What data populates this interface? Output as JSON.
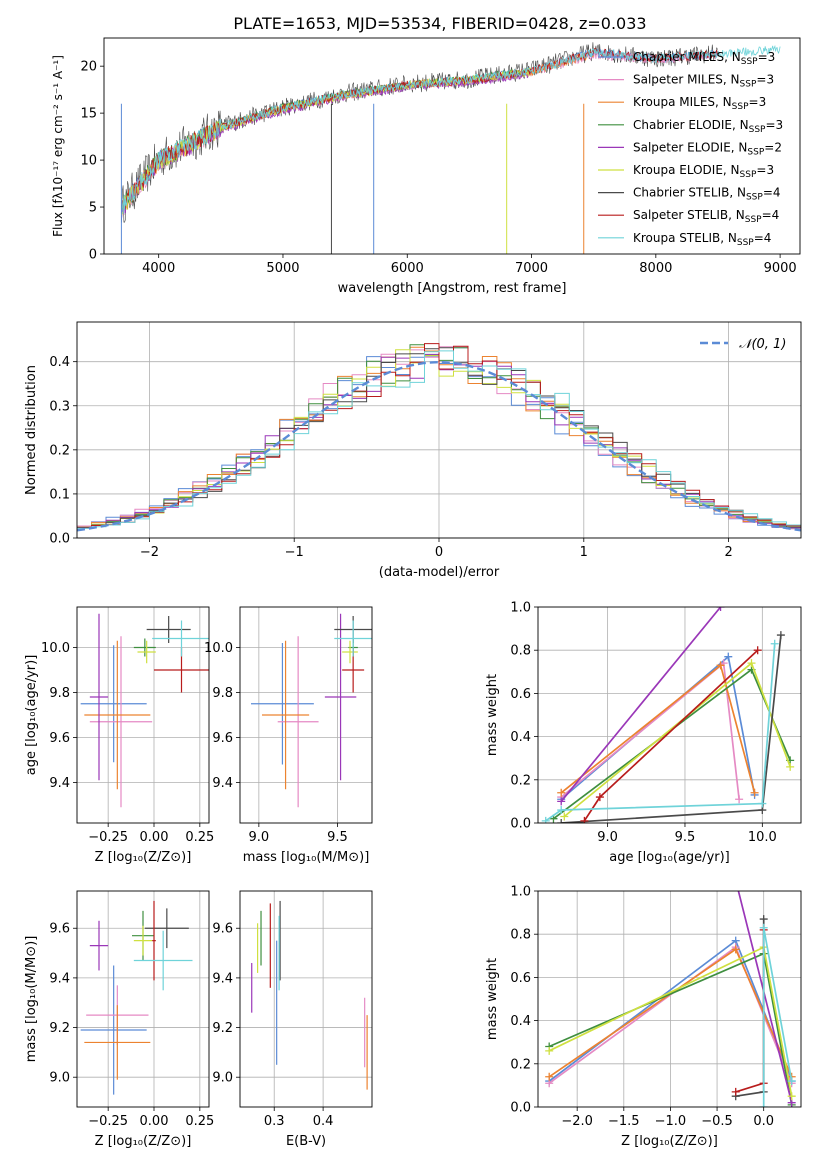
{
  "figure": {
    "title": "PLATE=1653, MJD=53534, FIBERID=0428, z=0.033"
  },
  "chart_data": [
    {
      "type": "line",
      "xlabel": "wavelength [Angstrom, rest frame]",
      "ylabel": "Flux [fλ10⁻¹⁷ erg cm⁻² s⁻¹ A⁻¹]",
      "xlim": [
        3560,
        9160
      ],
      "ylim": [
        0,
        23
      ],
      "xticks": [
        "4000",
        "5000",
        "6000",
        "7000",
        "8000",
        "9000"
      ],
      "yticks": [
        "0",
        "5",
        "10",
        "15",
        "20"
      ],
      "legend": "right",
      "x": [
        3700,
        4000,
        4500,
        5000,
        5500,
        6000,
        6500,
        7000,
        7500,
        8000,
        8500,
        9000
      ],
      "series": [
        {
          "name": "Chabrier MILES, N_SSP=3",
          "color": "#5b8bd6",
          "values": [
            5.0,
            10.0,
            13.5,
            15.5,
            17.0,
            18.0,
            18.5,
            19.5,
            21.5,
            20.8,
            21.3,
            null
          ]
        },
        {
          "name": "Salpeter MILES, N_SSP=3",
          "color": "#e58ac4",
          "values": [
            4.8,
            9.8,
            13.3,
            15.4,
            16.8,
            17.9,
            18.4,
            19.3,
            21.2,
            20.7,
            21.2,
            null
          ]
        },
        {
          "name": "Kroupa MILES, N_SSP=3",
          "color": "#ec8330",
          "values": [
            4.9,
            9.9,
            13.4,
            15.5,
            16.9,
            18.0,
            18.5,
            19.4,
            21.3,
            null,
            null,
            null
          ]
        },
        {
          "name": "Chabrier ELODIE, N_SSP=3",
          "color": "#3f8f3f",
          "values": [
            5.0,
            10.0,
            13.5,
            15.6,
            17.0,
            18.0,
            18.6,
            19.5,
            null,
            null,
            null,
            null
          ]
        },
        {
          "name": "Salpeter ELODIE, N_SSP=2",
          "color": "#9a37b8",
          "values": [
            4.7,
            9.7,
            13.2,
            15.3,
            16.8,
            17.8,
            18.3,
            19.2,
            null,
            null,
            null,
            null
          ]
        },
        {
          "name": "Kroupa ELODIE, N_SSP=3",
          "color": "#cfe040",
          "values": [
            4.9,
            9.9,
            13.4,
            15.5,
            16.9,
            18.0,
            18.5,
            19.4,
            null,
            null,
            null,
            null
          ]
        },
        {
          "name": "Chabrier STELIB, N_SSP=4",
          "color": "#4a4a4a",
          "values": [
            5.1,
            10.1,
            13.6,
            15.6,
            17.1,
            18.1,
            18.6,
            19.6,
            21.6,
            20.8,
            21.4,
            null
          ]
        },
        {
          "name": "Salpeter STELIB, N_SSP=4",
          "color": "#b81c1c",
          "values": [
            5.0,
            10.0,
            13.5,
            15.5,
            17.0,
            18.0,
            18.5,
            19.5,
            21.5,
            20.8,
            21.3,
            null
          ]
        },
        {
          "name": "Kroupa STELIB, N_SSP=4",
          "color": "#6fd3d9",
          "values": [
            5.0,
            10.0,
            13.5,
            15.6,
            17.0,
            18.0,
            18.6,
            19.5,
            21.5,
            20.8,
            21.3,
            21.8
          ]
        }
      ]
    },
    {
      "type": "line",
      "xlabel": "(data-model)/error",
      "ylabel": "Normed distribution",
      "xlim": [
        -2.5,
        2.5
      ],
      "ylim": [
        0,
        0.49
      ],
      "xticks": [
        "−2",
        "−1",
        "0",
        "1",
        "2"
      ],
      "yticks": [
        "0.0",
        "0.1",
        "0.2",
        "0.3",
        "0.4"
      ],
      "legend": "top-right",
      "reference": {
        "name": "𝒩(0, 1)",
        "color": "#5b8bd6",
        "dash": true
      }
    },
    {
      "type": "scatter",
      "xlabel": "Z [log₁₀(Z/Z⊙)]",
      "ylabel": "age  [log₁₀(age/yr)]",
      "xlim": [
        -0.42,
        0.3
      ],
      "ylim": [
        9.22,
        10.18
      ],
      "xticks": [
        "−0.25",
        "0.00",
        "0.25"
      ],
      "yticks": [
        "9.4",
        "9.6",
        "9.8",
        "10.0"
      ]
    },
    {
      "type": "scatter",
      "xlabel": "mass [log₁₀(M/M⊙)]",
      "xlim": [
        8.88,
        9.72
      ],
      "ylim": [
        9.22,
        10.18
      ],
      "xticks": [
        "9.0",
        "9.5"
      ],
      "yticks": [
        "9.4",
        "9.6",
        "9.8",
        "10.0"
      ]
    },
    {
      "type": "line",
      "xlabel": "age  [log₁₀(age/yr)]",
      "ylabel": "mass weight",
      "xlim": [
        8.55,
        10.25
      ],
      "ylim": [
        0,
        1
      ],
      "xticks": [
        "9.0",
        "9.5",
        "10.0"
      ],
      "yticks": [
        "0.0",
        "0.2",
        "0.4",
        "0.6",
        "0.8",
        "1.0"
      ]
    },
    {
      "type": "scatter",
      "xlabel": "Z [log₁₀(Z/Z⊙)]",
      "ylabel": "mass [log₁₀(M/M⊙)]",
      "xlim": [
        -0.42,
        0.3
      ],
      "ylim": [
        8.88,
        9.75
      ],
      "xticks": [
        "−0.25",
        "0.00",
        "0.25"
      ],
      "yticks": [
        "9.0",
        "9.2",
        "9.4",
        "9.6"
      ]
    },
    {
      "type": "scatter",
      "xlabel": "E(B-V)",
      "xlim": [
        0.23,
        0.5
      ],
      "ylim": [
        8.88,
        9.75
      ],
      "xticks": [
        "0.3",
        "0.4"
      ],
      "yticks": [
        "9.0",
        "9.2",
        "9.4",
        "9.6"
      ]
    },
    {
      "type": "line",
      "xlabel": "Z [log₁₀(Z/Z⊙)]",
      "ylabel": "mass weight",
      "xlim": [
        -2.42,
        0.4
      ],
      "ylim": [
        0,
        1
      ],
      "xticks": [
        "−2.0",
        "−1.5",
        "−1.0",
        "−0.5",
        "0.0"
      ],
      "yticks": [
        "0.0",
        "0.2",
        "0.4",
        "0.6",
        "0.8",
        "1.0"
      ]
    }
  ]
}
